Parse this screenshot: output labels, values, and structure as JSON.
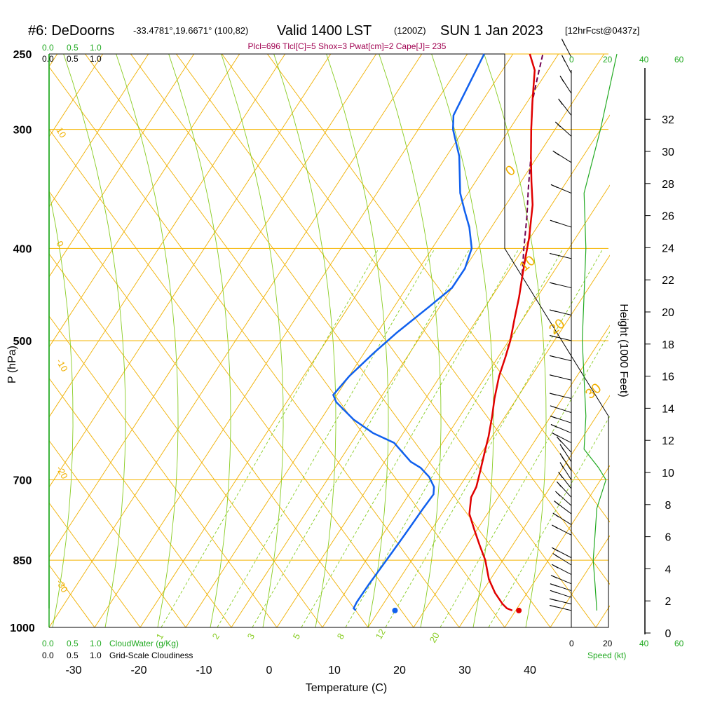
{
  "header": {
    "title_prefix": "#6: DeDoorns",
    "coords": "-33.4781°,19.6671° (100,82)",
    "valid": "Valid 1400 LST",
    "zulu": "(1200Z)",
    "date": "SUN 1 Jan 2023",
    "forecast": "[12hrFcst@0437z]",
    "indices": "Plcl=696 Tlcl[C]=5 Shox=3 Pwat[cm]=2 Cape[J]= 235"
  },
  "cloud_scale": {
    "top_green": [
      "0.0",
      "0.5",
      "1.0"
    ],
    "top_black": [
      "0.0",
      "0.5",
      "1.0"
    ],
    "bottom_green": [
      "0.0",
      "0.5",
      "1.0"
    ],
    "bottom_black": [
      "0.0",
      "0.5",
      "1.0"
    ],
    "cloudwater_label": "CloudWater (g/Kg)",
    "cloudiness_label": "Grid-Scale Cloudiness"
  },
  "speed_scale": {
    "top_black": [
      "0"
    ],
    "top_green": [
      "20",
      "40",
      "60"
    ],
    "bottom_black": [
      "0",
      "20"
    ],
    "bottom_green": [
      "40",
      "60"
    ],
    "label": "Speed (kt)"
  },
  "chart_data": {
    "type": "line",
    "title": "#6: DeDoorns Valid 1400 LST (1200Z) SUN 1 Jan 2023",
    "xlabel": "Temperature (C)",
    "ylabel": "P (hPa)",
    "y2label": "Height (1000 Feet)",
    "x_ticks": [
      -30,
      -20,
      -10,
      0,
      10,
      20,
      30,
      40
    ],
    "p_ticks": [
      250,
      300,
      400,
      500,
      700,
      850,
      1000
    ],
    "height_ticks": [
      0,
      2,
      4,
      6,
      8,
      10,
      12,
      14,
      16,
      18,
      20,
      22,
      24,
      26,
      28,
      30,
      32
    ],
    "dry_adiabat_labels": [
      "10",
      "0",
      "-10",
      "-20",
      "-30"
    ],
    "moist_adiabat_labels": [
      "0",
      "10",
      "20",
      "30"
    ],
    "mixing_ratio_labels": [
      "1",
      "2",
      "3",
      "5",
      "8",
      "12",
      "20"
    ],
    "series": [
      {
        "name": "Temperature",
        "color": "#e00000",
        "points": [
          [
            36,
            960
          ],
          [
            35,
            955
          ],
          [
            34,
            945
          ],
          [
            32,
            920
          ],
          [
            30,
            890
          ],
          [
            28,
            850
          ],
          [
            26,
            820
          ],
          [
            24,
            790
          ],
          [
            22,
            760
          ],
          [
            21,
            730
          ],
          [
            21,
            712
          ],
          [
            20.5,
            690
          ],
          [
            20,
            670
          ],
          [
            19.5,
            650
          ],
          [
            19,
            630
          ],
          [
            18,
            600
          ],
          [
            17,
            575
          ],
          [
            16,
            545
          ],
          [
            15.5,
            520
          ],
          [
            15,
            500
          ],
          [
            14,
            475
          ],
          [
            13,
            450
          ],
          [
            12,
            430
          ],
          [
            11,
            410
          ],
          [
            10,
            390
          ],
          [
            8,
            360
          ],
          [
            6,
            340
          ],
          [
            4,
            320
          ],
          [
            2,
            300
          ],
          [
            0,
            280
          ],
          [
            -2,
            260
          ],
          [
            -4,
            250
          ]
        ]
      },
      {
        "name": "Dewpoint",
        "color": "#1060ee",
        "points": [
          [
            12,
            960
          ],
          [
            11.5,
            955
          ],
          [
            11.5,
            940
          ],
          [
            12,
            900
          ],
          [
            12.5,
            870
          ],
          [
            13,
            840
          ],
          [
            13.5,
            810
          ],
          [
            14,
            780
          ],
          [
            14.5,
            750
          ],
          [
            15,
            725
          ],
          [
            14.5,
            712
          ],
          [
            13,
            695
          ],
          [
            11,
            680
          ],
          [
            9,
            670
          ],
          [
            5,
            640
          ],
          [
            1,
            625
          ],
          [
            -3,
            605
          ],
          [
            -7,
            580
          ],
          [
            -8,
            570
          ],
          [
            -7,
            545
          ],
          [
            -5,
            515
          ],
          [
            -3,
            490
          ],
          [
            0,
            460
          ],
          [
            2,
            440
          ],
          [
            2.5,
            420
          ],
          [
            2,
            400
          ],
          [
            0,
            380
          ],
          [
            -2,
            365
          ],
          [
            -4,
            350
          ],
          [
            -7,
            320
          ],
          [
            -10,
            300
          ],
          [
            -11,
            290
          ],
          [
            -11,
            250
          ]
        ]
      },
      {
        "name": "Parcel",
        "color": "#700050",
        "points": [
          [
            13,
            450
          ],
          [
            12,
            430
          ],
          [
            10,
            400
          ],
          [
            8,
            370
          ],
          [
            6,
            345
          ],
          [
            4,
            320
          ],
          [
            2,
            300
          ],
          [
            0,
            280
          ],
          [
            -1,
            265
          ],
          [
            -2,
            250
          ]
        ]
      },
      {
        "name": "Cloud water",
        "color": "#22aa22",
        "points": [
          [
            0,
            1000
          ],
          [
            0,
            250
          ]
        ]
      }
    ],
    "surface_temperature": 37,
    "surface_dewpoint": 18,
    "wind_speed_profile_kt": [
      [
        960,
        14
      ],
      [
        900,
        13
      ],
      [
        850,
        12
      ],
      [
        800,
        13
      ],
      [
        750,
        14
      ],
      [
        700,
        19
      ],
      [
        680,
        15
      ],
      [
        650,
        7
      ],
      [
        600,
        8
      ],
      [
        500,
        6
      ],
      [
        400,
        8
      ],
      [
        350,
        7
      ],
      [
        300,
        16
      ],
      [
        250,
        25
      ]
    ],
    "wind_barbs": [
      {
        "p": 960,
        "spd": 10,
        "dir": 285
      },
      {
        "p": 945,
        "spd": 10,
        "dir": 285
      },
      {
        "p": 930,
        "spd": 10,
        "dir": 290
      },
      {
        "p": 915,
        "spd": 10,
        "dir": 290
      },
      {
        "p": 900,
        "spd": 10,
        "dir": 295
      },
      {
        "p": 880,
        "spd": 10,
        "dir": 300
      },
      {
        "p": 860,
        "spd": 10,
        "dir": 305
      },
      {
        "p": 845,
        "spd": 10,
        "dir": 300
      },
      {
        "p": 800,
        "spd": 10,
        "dir": 300
      },
      {
        "p": 780,
        "spd": 10,
        "dir": 305
      },
      {
        "p": 760,
        "spd": 10,
        "dir": 310
      },
      {
        "p": 745,
        "spd": 10,
        "dir": 315
      },
      {
        "p": 730,
        "spd": 10,
        "dir": 320
      },
      {
        "p": 715,
        "spd": 10,
        "dir": 325
      },
      {
        "p": 700,
        "spd": 10,
        "dir": 330
      },
      {
        "p": 685,
        "spd": 5,
        "dir": 330
      },
      {
        "p": 670,
        "spd": 5,
        "dir": 330
      },
      {
        "p": 655,
        "spd": 5,
        "dir": 320
      },
      {
        "p": 640,
        "spd": 10,
        "dir": 300
      },
      {
        "p": 625,
        "spd": 10,
        "dir": 295
      },
      {
        "p": 610,
        "spd": 10,
        "dir": 290
      },
      {
        "p": 595,
        "spd": 10,
        "dir": 290
      },
      {
        "p": 575,
        "spd": 10,
        "dir": 285
      },
      {
        "p": 550,
        "spd": 10,
        "dir": 285
      },
      {
        "p": 525,
        "spd": 10,
        "dir": 285
      },
      {
        "p": 500,
        "spd": 10,
        "dir": 285
      },
      {
        "p": 470,
        "spd": 10,
        "dir": 285
      },
      {
        "p": 440,
        "spd": 10,
        "dir": 285
      },
      {
        "p": 410,
        "spd": 10,
        "dir": 285
      },
      {
        "p": 380,
        "spd": 10,
        "dir": 290
      },
      {
        "p": 350,
        "spd": 10,
        "dir": 295
      },
      {
        "p": 325,
        "spd": 10,
        "dir": 305
      },
      {
        "p": 305,
        "spd": 10,
        "dir": 315
      },
      {
        "p": 290,
        "spd": 10,
        "dir": 325
      },
      {
        "p": 275,
        "spd": 10,
        "dir": 330
      },
      {
        "p": 262,
        "spd": 10,
        "dir": 335
      },
      {
        "p": 252,
        "spd": 10,
        "dir": 335
      }
    ]
  },
  "colors": {
    "isobar": "#f5b400",
    "dry_adiabat": "#f0b000",
    "moist_adiabat": "#88cc22",
    "mixing_ratio": "#88cc22",
    "temperature": "#e00000",
    "dewpoint": "#1060ee",
    "parcel": "#700050",
    "cloud": "#22aa22",
    "speed": "#22aa22"
  }
}
